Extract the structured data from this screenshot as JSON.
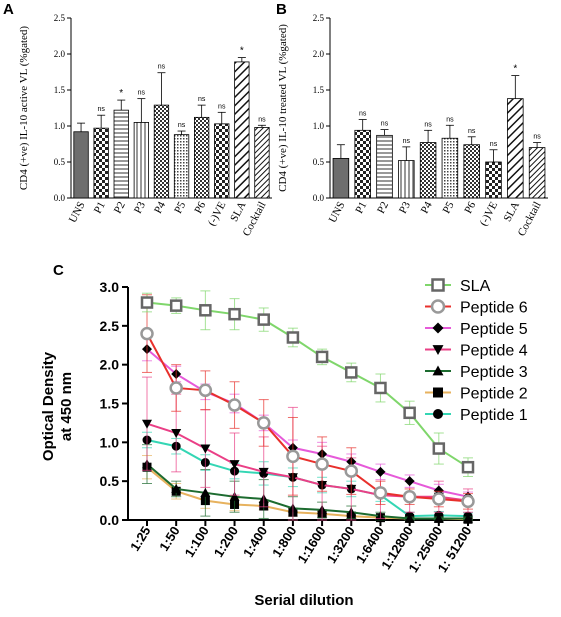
{
  "panels": {
    "A": {
      "letter": "A"
    },
    "B": {
      "letter": "B"
    },
    "C": {
      "letter": "C"
    }
  },
  "chart_data": [
    {
      "id": "A",
      "type": "bar",
      "ylabel": "CD4 (+ve) IL-10 active VL (%gated)",
      "ylim": [
        0,
        2.5
      ],
      "yticks": [
        "0.0",
        "0.5",
        "1.0",
        "1.5",
        "2.0",
        "2.5"
      ],
      "categories": [
        "UNS",
        "P1",
        "P2",
        "P3",
        "P4",
        "P5",
        "P6",
        "(-)VE",
        "SLA",
        "Cocktail"
      ],
      "values": [
        0.92,
        0.97,
        1.22,
        1.05,
        1.29,
        0.88,
        1.12,
        1.03,
        1.89,
        0.98
      ],
      "errors": [
        0.12,
        0.18,
        0.14,
        0.33,
        0.45,
        0.05,
        0.17,
        0.16,
        0.06,
        0.03
      ],
      "annotations": [
        "",
        "ns",
        "*",
        "ns",
        "ns",
        "ns",
        "ns",
        "ns",
        "*",
        "ns"
      ],
      "patterns": [
        "solid",
        "checker",
        "hlines",
        "vlines",
        "checker-fine",
        "dots",
        "checker-fine",
        "checker",
        "diag",
        "diag-dense"
      ]
    },
    {
      "id": "B",
      "type": "bar",
      "ylabel": "CD4 (+ve) IL-10 treated VL (%gated)",
      "ylim": [
        0,
        2.5
      ],
      "yticks": [
        "0.0",
        "0.5",
        "1.0",
        "1.5",
        "2.0",
        "2.5"
      ],
      "categories": [
        "UNS",
        "P1",
        "P2",
        "P3",
        "P4",
        "P5",
        "P6",
        "(-)VE",
        "SLA",
        "Cocktail"
      ],
      "values": [
        0.55,
        0.94,
        0.87,
        0.52,
        0.77,
        0.83,
        0.74,
        0.5,
        1.38,
        0.7
      ],
      "errors": [
        0.19,
        0.15,
        0.08,
        0.19,
        0.17,
        0.18,
        0.11,
        0.17,
        0.32,
        0.07
      ],
      "annotations": [
        "",
        "ns",
        "ns",
        "ns",
        "ns",
        "ns",
        "ns",
        "ns",
        "*",
        "ns"
      ],
      "patterns": [
        "solid",
        "checker",
        "hlines",
        "vlines",
        "checker-fine",
        "dots",
        "checker-fine",
        "checker",
        "diag",
        "diag-dense"
      ]
    },
    {
      "id": "C",
      "type": "line",
      "xlabel": "Serial dilution",
      "ylabel": "Optical Density at 450 nm",
      "ylabel_lines": [
        "Optical Density",
        "at 450 nm"
      ],
      "ylim": [
        0,
        3.0
      ],
      "yticks": [
        "0.0",
        "0.5",
        "1.0",
        "1.5",
        "2.0",
        "2.5",
        "3.0"
      ],
      "categories": [
        "1:25",
        "1:50",
        "1:100",
        "1:200",
        "1:400",
        "1:800",
        "1:1600",
        "1:3200",
        "1:6400",
        "1:12800",
        "1: 25600",
        "1: 51200"
      ],
      "legend_position": "top-right",
      "series": [
        {
          "name": "SLA",
          "color": "#7fd66b",
          "marker": "square-open",
          "values": [
            2.8,
            2.76,
            2.7,
            2.65,
            2.58,
            2.35,
            2.1,
            1.9,
            1.7,
            1.38,
            0.92,
            0.68
          ],
          "errors": [
            0.12,
            0.1,
            0.25,
            0.2,
            0.15,
            0.12,
            0.1,
            0.12,
            0.18,
            0.15,
            0.2,
            0.12
          ]
        },
        {
          "name": "Peptide 6",
          "color": "#e8302c",
          "marker": "circle-open",
          "values": [
            2.4,
            1.7,
            1.67,
            1.48,
            1.25,
            0.82,
            0.72,
            0.63,
            0.35,
            0.3,
            0.27,
            0.24
          ],
          "errors": [
            0.5,
            0.3,
            0.25,
            0.3,
            0.3,
            0.5,
            0.35,
            0.3,
            0.15,
            0.1,
            0.1,
            0.1
          ]
        },
        {
          "name": "Peptide 5",
          "color": "#e65ad9",
          "marker": "diamond",
          "values": [
            2.2,
            1.88,
            1.65,
            1.5,
            1.25,
            0.93,
            0.85,
            0.75,
            0.62,
            0.5,
            0.38,
            0.3
          ],
          "errors": [
            0.15,
            0.1,
            0.1,
            0.12,
            0.1,
            0.1,
            0.15,
            0.1,
            0.1,
            0.08,
            0.08,
            0.06
          ]
        },
        {
          "name": "Peptide 4",
          "color": "#ea3f86",
          "marker": "triangle-down",
          "values": [
            1.24,
            1.12,
            0.92,
            0.72,
            0.62,
            0.55,
            0.45,
            0.4,
            0.32,
            0.3,
            0.3,
            0.25
          ],
          "errors": [
            0.6,
            0.5,
            0.5,
            0.4,
            0.45,
            0.9,
            0.5,
            0.4,
            0.3,
            0.2,
            0.2,
            0.15
          ]
        },
        {
          "name": "Peptide 3",
          "color": "#1c6b2f",
          "marker": "triangle-up",
          "values": [
            0.72,
            0.4,
            0.35,
            0.3,
            0.27,
            0.15,
            0.13,
            0.1,
            0.05,
            0.02,
            0.02,
            0.02
          ],
          "errors": [
            0.25,
            0.1,
            0.3,
            0.2,
            0.25,
            0.15,
            0.1,
            0.08,
            0.05,
            0.02,
            0.02,
            0.02
          ]
        },
        {
          "name": "Peptide 2",
          "color": "#e7b25e",
          "marker": "square",
          "values": [
            0.68,
            0.37,
            0.25,
            0.2,
            0.18,
            0.1,
            0.08,
            0.05,
            0.03,
            0.02,
            0.02,
            0.01
          ],
          "errors": [
            0.15,
            0.1,
            0.1,
            0.08,
            0.05,
            0.05,
            0.03,
            0.03,
            0.02,
            0.02,
            0.01,
            0.01
          ]
        },
        {
          "name": "Peptide 1",
          "color": "#34d6b4",
          "marker": "circle",
          "values": [
            1.03,
            0.95,
            0.74,
            0.63,
            0.6,
            0.55,
            0.45,
            0.4,
            0.32,
            0.05,
            0.06,
            0.05
          ],
          "errors": [
            0.1,
            0.1,
            0.1,
            0.1,
            0.15,
            0.12,
            0.1,
            0.1,
            0.08,
            0.05,
            0.05,
            0.04
          ]
        }
      ]
    }
  ]
}
